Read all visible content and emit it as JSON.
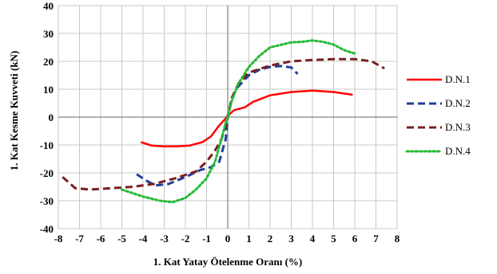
{
  "chart_data": {
    "type": "line",
    "title": "",
    "xlabel": "1. Kat Yatay Ötelenme Oranı (%)",
    "ylabel": "1. Kat Kesme Kuvveti (kN)",
    "xlim": [
      -8,
      8
    ],
    "ylim": [
      -40,
      40
    ],
    "xticks": [
      -8,
      -7,
      -6,
      -5,
      -4,
      -3,
      -2,
      -1,
      0,
      1,
      2,
      3,
      4,
      5,
      6,
      7,
      8
    ],
    "yticks": [
      40,
      30,
      20,
      10,
      0,
      -10,
      -20,
      -30,
      -40
    ],
    "grid": true,
    "legend_position": "right",
    "series": [
      {
        "name": "D.N.1",
        "color": "#ff0000",
        "style": "solid",
        "x": [
          -4.1,
          -3.6,
          -3.0,
          -2.4,
          -1.8,
          -1.2,
          -0.8,
          -0.4,
          -0.1,
          0.0,
          0.3,
          0.8,
          1.2,
          2.0,
          3.0,
          4.0,
          5.0,
          5.9
        ],
        "y": [
          -9,
          -10.2,
          -10.5,
          -10.5,
          -10.2,
          -9,
          -7,
          -3,
          -0.5,
          0.5,
          2.5,
          3.5,
          5.5,
          7.8,
          9,
          9.5,
          9,
          8
        ]
      },
      {
        "name": "D.N.2",
        "color": "#1f3f99",
        "style": "dash",
        "x": [
          -4.3,
          -3.8,
          -3.4,
          -2.8,
          -2.0,
          -1.3,
          -0.8,
          -0.4,
          -0.1,
          0.0,
          0.2,
          0.5,
          1.0,
          1.5,
          2.0,
          2.5,
          3.0,
          3.3
        ],
        "y": [
          -20.5,
          -23,
          -24.5,
          -24,
          -21.5,
          -19,
          -18,
          -16,
          -8,
          0,
          7,
          11,
          15,
          17,
          18,
          18.3,
          17.8,
          15.5
        ]
      },
      {
        "name": "D.N.3",
        "color": "#7a2020",
        "style": "dash",
        "x": [
          -7.8,
          -7.2,
          -6.5,
          -5.5,
          -4.5,
          -3.5,
          -2.5,
          -1.5,
          -1.0,
          -0.6,
          -0.3,
          -0.1,
          0.0,
          0.2,
          0.5,
          1.0,
          2.0,
          3.0,
          4.0,
          5.0,
          6.0,
          6.8,
          7.4
        ],
        "y": [
          -21.5,
          -25.5,
          -26,
          -25.5,
          -25,
          -24,
          -22,
          -19.5,
          -16,
          -12,
          -8,
          -3,
          0,
          7,
          12,
          16,
          18.5,
          20,
          20.5,
          20.8,
          20.8,
          20,
          17.5
        ]
      },
      {
        "name": "D.N.4",
        "color": "#22bb33",
        "style": "dot",
        "x": [
          -5.0,
          -4.0,
          -3.2,
          -2.6,
          -2.0,
          -1.5,
          -1.0,
          -0.6,
          -0.3,
          -0.1,
          0.0,
          0.2,
          0.5,
          1.0,
          1.5,
          2.0,
          3.0,
          3.5,
          4.0,
          4.5,
          5.0,
          5.5,
          6.0
        ],
        "y": [
          -26,
          -28.5,
          -30,
          -30.5,
          -29,
          -26,
          -22,
          -16,
          -8,
          -2,
          0,
          6,
          12,
          18,
          22,
          25,
          26.8,
          27,
          27.5,
          27,
          26,
          24,
          22.8
        ]
      }
    ]
  }
}
